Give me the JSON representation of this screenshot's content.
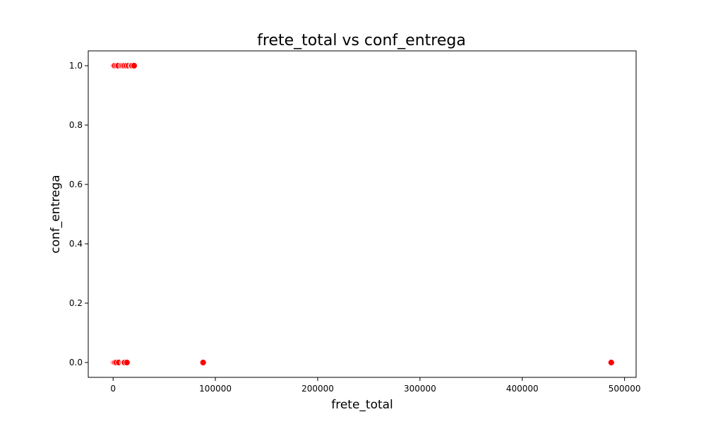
{
  "chart_data": {
    "type": "scatter",
    "title": "frete_total vs conf_entrega",
    "xlabel": "frete_total",
    "ylabel": "conf_entrega",
    "xlim": [
      -24300,
      511300
    ],
    "ylim": [
      -0.05,
      1.05
    ],
    "xticks": [
      0,
      100000,
      200000,
      300000,
      400000,
      500000
    ],
    "xtick_labels": [
      "0",
      "100000",
      "200000",
      "300000",
      "400000",
      "500000"
    ],
    "yticks": [
      0.0,
      0.2,
      0.4,
      0.6,
      0.8,
      1.0
    ],
    "ytick_labels": [
      "0.0",
      "0.2",
      "0.4",
      "0.6",
      "0.8",
      "1.0"
    ],
    "grid": false,
    "legend": "none",
    "marker_color": "#ff0000",
    "marker_edge_color": "#ffffff",
    "series": [
      {
        "points": [
          {
            "x": 200,
            "y": 1
          },
          {
            "x": 800,
            "y": 1
          },
          {
            "x": 1500,
            "y": 1
          },
          {
            "x": 3500,
            "y": 1
          },
          {
            "x": 5000,
            "y": 1
          },
          {
            "x": 8000,
            "y": 1
          },
          {
            "x": 9500,
            "y": 1
          },
          {
            "x": 11000,
            "y": 1
          },
          {
            "x": 13000,
            "y": 1
          },
          {
            "x": 15000,
            "y": 1
          },
          {
            "x": 17500,
            "y": 1
          },
          {
            "x": 18500,
            "y": 1
          },
          {
            "x": 20500,
            "y": 1
          },
          {
            "x": 300,
            "y": 0
          },
          {
            "x": 1000,
            "y": 0
          },
          {
            "x": 1800,
            "y": 0
          },
          {
            "x": 3000,
            "y": 0
          },
          {
            "x": 5500,
            "y": 0
          },
          {
            "x": 9500,
            "y": 0
          },
          {
            "x": 10500,
            "y": 0
          },
          {
            "x": 11200,
            "y": 0
          },
          {
            "x": 13500,
            "y": 0
          },
          {
            "x": 88000,
            "y": 0
          },
          {
            "x": 487000,
            "y": 0
          }
        ]
      }
    ]
  }
}
